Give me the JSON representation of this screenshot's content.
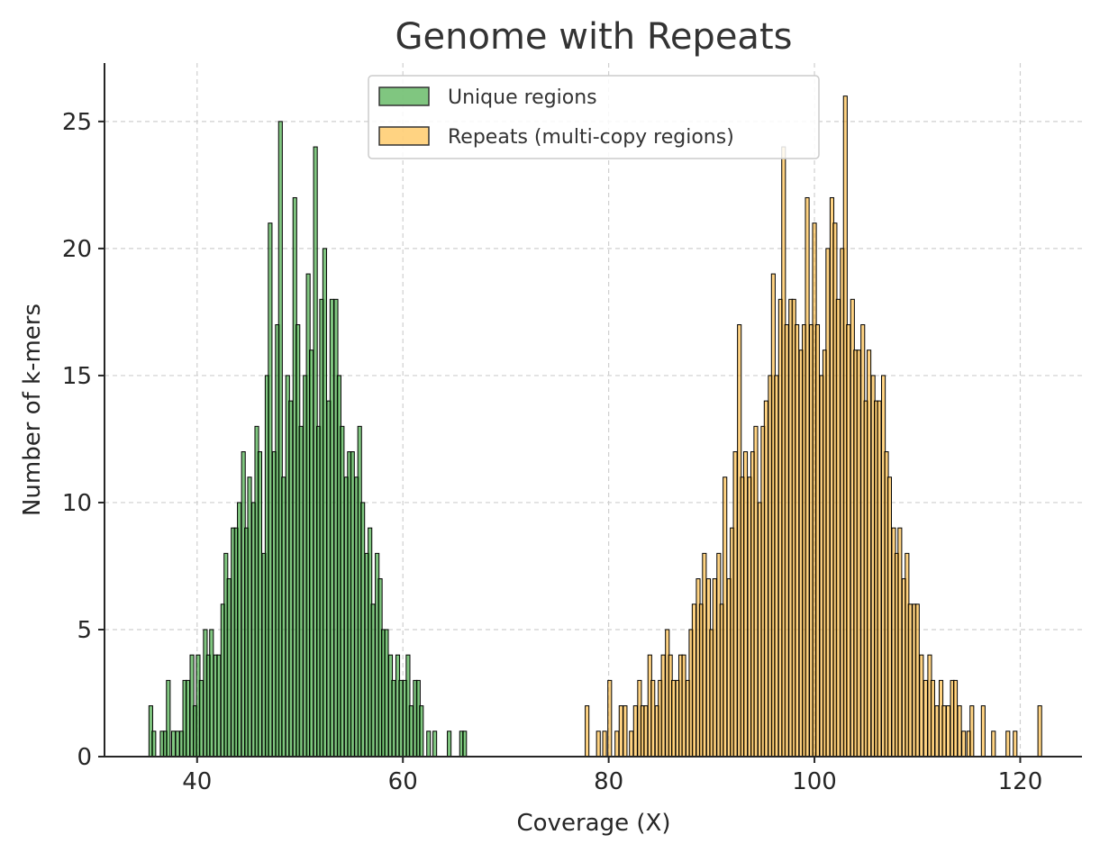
{
  "chart_data": {
    "type": "bar",
    "title": "Genome with Repeats",
    "xlabel": "Coverage (X)",
    "ylabel": "Number of k-mers",
    "xlim": [
      31,
      126
    ],
    "ylim": [
      0,
      27.3
    ],
    "xticks": [
      40,
      60,
      80,
      100,
      120
    ],
    "yticks": [
      0,
      5,
      10,
      15,
      20,
      25
    ],
    "grid": true,
    "legend_position": "top-center",
    "bin_width": 0.36,
    "series": [
      {
        "name": "Unique regions",
        "color": "#2ca02c",
        "edgecolor": "#000000",
        "bins": [
          [
            35.5,
            2
          ],
          [
            35.8,
            1
          ],
          [
            36.6,
            1
          ],
          [
            36.9,
            1
          ],
          [
            37.2,
            3
          ],
          [
            37.7,
            1
          ],
          [
            38.1,
            1
          ],
          [
            38.5,
            1
          ],
          [
            38.8,
            3
          ],
          [
            39.1,
            3
          ],
          [
            39.5,
            4
          ],
          [
            39.8,
            2
          ],
          [
            40.1,
            4
          ],
          [
            40.4,
            3
          ],
          [
            40.8,
            5
          ],
          [
            41.1,
            4
          ],
          [
            41.4,
            5
          ],
          [
            41.8,
            4
          ],
          [
            42.1,
            4
          ],
          [
            42.5,
            6
          ],
          [
            42.8,
            8
          ],
          [
            43.1,
            7
          ],
          [
            43.5,
            9
          ],
          [
            43.8,
            9
          ],
          [
            44.1,
            10
          ],
          [
            44.5,
            12
          ],
          [
            44.8,
            9
          ],
          [
            45.1,
            11
          ],
          [
            45.5,
            10
          ],
          [
            45.8,
            13
          ],
          [
            46.1,
            12
          ],
          [
            46.5,
            8
          ],
          [
            46.8,
            15
          ],
          [
            47.1,
            21
          ],
          [
            47.5,
            12
          ],
          [
            47.8,
            17
          ],
          [
            48.1,
            25
          ],
          [
            48.4,
            11
          ],
          [
            48.8,
            15
          ],
          [
            49.1,
            14
          ],
          [
            49.5,
            22
          ],
          [
            49.8,
            17
          ],
          [
            50.1,
            13
          ],
          [
            50.5,
            15
          ],
          [
            50.8,
            19
          ],
          [
            51.1,
            16
          ],
          [
            51.5,
            24
          ],
          [
            51.8,
            13
          ],
          [
            52.1,
            18
          ],
          [
            52.4,
            20
          ],
          [
            52.8,
            14
          ],
          [
            53.1,
            18
          ],
          [
            53.5,
            18
          ],
          [
            53.8,
            15
          ],
          [
            54.1,
            13
          ],
          [
            54.5,
            11
          ],
          [
            54.8,
            12
          ],
          [
            55.1,
            12
          ],
          [
            55.5,
            11
          ],
          [
            55.8,
            13
          ],
          [
            56.1,
            10
          ],
          [
            56.5,
            8
          ],
          [
            56.8,
            9
          ],
          [
            57.1,
            6
          ],
          [
            57.5,
            8
          ],
          [
            57.8,
            7
          ],
          [
            58.1,
            5
          ],
          [
            58.4,
            5
          ],
          [
            58.8,
            4
          ],
          [
            59.1,
            3
          ],
          [
            59.5,
            4
          ],
          [
            59.8,
            3
          ],
          [
            60.2,
            3
          ],
          [
            60.5,
            4
          ],
          [
            60.8,
            2
          ],
          [
            61.2,
            3
          ],
          [
            61.5,
            3
          ],
          [
            61.8,
            2
          ],
          [
            62.5,
            1
          ],
          [
            63.1,
            1
          ],
          [
            64.5,
            1
          ],
          [
            65.7,
            1
          ],
          [
            66.0,
            1
          ]
        ]
      },
      {
        "name": "Repeats (multi-copy regions)",
        "color": "#ffb52e",
        "edgecolor": "#000000",
        "bins": [
          [
            77.9,
            2
          ],
          [
            79.0,
            1
          ],
          [
            79.6,
            1
          ],
          [
            80.1,
            3
          ],
          [
            80.8,
            1
          ],
          [
            81.2,
            2
          ],
          [
            81.6,
            2
          ],
          [
            82.2,
            1
          ],
          [
            82.6,
            2
          ],
          [
            83.0,
            3
          ],
          [
            83.3,
            2
          ],
          [
            83.6,
            2
          ],
          [
            84.0,
            4
          ],
          [
            84.3,
            3
          ],
          [
            84.7,
            2
          ],
          [
            85.0,
            3
          ],
          [
            85.3,
            4
          ],
          [
            85.7,
            5
          ],
          [
            86.0,
            4
          ],
          [
            86.3,
            3
          ],
          [
            86.7,
            3
          ],
          [
            87.0,
            4
          ],
          [
            87.3,
            4
          ],
          [
            87.7,
            3
          ],
          [
            88.0,
            5
          ],
          [
            88.3,
            6
          ],
          [
            88.7,
            7
          ],
          [
            89.0,
            6
          ],
          [
            89.3,
            8
          ],
          [
            89.7,
            7
          ],
          [
            90.0,
            5
          ],
          [
            90.3,
            7
          ],
          [
            90.7,
            8
          ],
          [
            91.0,
            6
          ],
          [
            91.3,
            11
          ],
          [
            91.7,
            7
          ],
          [
            92.0,
            9
          ],
          [
            92.3,
            12
          ],
          [
            92.7,
            17
          ],
          [
            93.0,
            11
          ],
          [
            93.3,
            12
          ],
          [
            93.7,
            11
          ],
          [
            94.0,
            12
          ],
          [
            94.3,
            13
          ],
          [
            94.7,
            10
          ],
          [
            95.0,
            13
          ],
          [
            95.3,
            14
          ],
          [
            95.7,
            15
          ],
          [
            96.0,
            19
          ],
          [
            96.3,
            15
          ],
          [
            96.7,
            18
          ],
          [
            97.0,
            24
          ],
          [
            97.3,
            17
          ],
          [
            97.7,
            18
          ],
          [
            98.0,
            18
          ],
          [
            98.3,
            17
          ],
          [
            98.7,
            16
          ],
          [
            99.0,
            17
          ],
          [
            99.3,
            22
          ],
          [
            99.7,
            17
          ],
          [
            100.0,
            21
          ],
          [
            100.3,
            17
          ],
          [
            100.7,
            15
          ],
          [
            101.0,
            16
          ],
          [
            101.3,
            20
          ],
          [
            101.7,
            22
          ],
          [
            102.0,
            21
          ],
          [
            102.3,
            18
          ],
          [
            102.7,
            20
          ],
          [
            103.0,
            26
          ],
          [
            103.3,
            17
          ],
          [
            103.7,
            18
          ],
          [
            104.0,
            16
          ],
          [
            104.3,
            16
          ],
          [
            104.7,
            17
          ],
          [
            105.0,
            14
          ],
          [
            105.3,
            16
          ],
          [
            105.7,
            15
          ],
          [
            106.0,
            14
          ],
          [
            106.3,
            14
          ],
          [
            106.7,
            15
          ],
          [
            107.0,
            12
          ],
          [
            107.3,
            11
          ],
          [
            107.7,
            9
          ],
          [
            108.0,
            8
          ],
          [
            108.3,
            9
          ],
          [
            108.7,
            7
          ],
          [
            109.0,
            8
          ],
          [
            109.3,
            6
          ],
          [
            109.7,
            6
          ],
          [
            110.0,
            6
          ],
          [
            110.4,
            4
          ],
          [
            110.8,
            3
          ],
          [
            111.2,
            4
          ],
          [
            111.5,
            3
          ],
          [
            111.9,
            2
          ],
          [
            112.3,
            3
          ],
          [
            112.6,
            2
          ],
          [
            113.0,
            2
          ],
          [
            113.4,
            3
          ],
          [
            113.7,
            3
          ],
          [
            114.1,
            2
          ],
          [
            114.5,
            1
          ],
          [
            115.0,
            1
          ],
          [
            115.3,
            2
          ],
          [
            116.4,
            2
          ],
          [
            117.4,
            1
          ],
          [
            118.8,
            1
          ],
          [
            119.5,
            1
          ],
          [
            121.9,
            2
          ]
        ]
      }
    ]
  }
}
